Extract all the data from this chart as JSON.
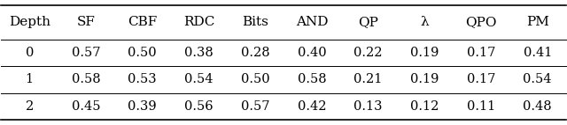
{
  "columns": [
    "Depth",
    "SF",
    "CBF",
    "RDC",
    "Bits",
    "AND",
    "QP",
    "λ",
    "QPO",
    "PM"
  ],
  "rows": [
    [
      "0",
      "0.57",
      "0.50",
      "0.38",
      "0.28",
      "0.40",
      "0.22",
      "0.19",
      "0.17",
      "0.41"
    ],
    [
      "1",
      "0.58",
      "0.53",
      "0.54",
      "0.50",
      "0.58",
      "0.21",
      "0.19",
      "0.17",
      "0.54"
    ],
    [
      "2",
      "0.45",
      "0.39",
      "0.56",
      "0.57",
      "0.42",
      "0.13",
      "0.12",
      "0.11",
      "0.48"
    ]
  ],
  "header_fontsize": 11,
  "cell_fontsize": 10.5,
  "fig_width": 6.4,
  "fig_height": 1.42,
  "lw_thick": 1.2,
  "lw_thin": 0.7
}
